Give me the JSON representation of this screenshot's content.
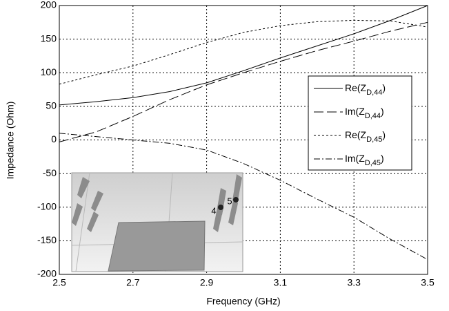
{
  "chart_data": {
    "type": "line",
    "x_label": "Frequency (GHz)",
    "y_label": "Impedance (Ohm)",
    "x": [
      2.5,
      2.6,
      2.7,
      2.8,
      2.9,
      3.0,
      3.1,
      3.2,
      3.3,
      3.4,
      3.5
    ],
    "series": [
      {
        "name": "Re(ZD,44)",
        "color": "#000000",
        "dash": "none",
        "values": [
          52,
          57,
          63,
          72,
          85,
          103,
          122,
          140,
          158,
          178,
          200
        ]
      },
      {
        "name": "Im(ZD,44)",
        "color": "#000000",
        "dash": "14 5",
        "values": [
          -3,
          12,
          35,
          60,
          82,
          100,
          117,
          133,
          147,
          162,
          175
        ]
      },
      {
        "name": "Re(ZD,45)",
        "color": "#000000",
        "dash": "3 3",
        "values": [
          83,
          97,
          110,
          127,
          145,
          160,
          170,
          176,
          178,
          177,
          168
        ]
      },
      {
        "name": "Im(ZD,45)",
        "color": "#000000",
        "dash": "9 3 2 3",
        "values": [
          10,
          5,
          0,
          -5,
          -15,
          -35,
          -60,
          -88,
          -115,
          -148,
          -178
        ]
      }
    ],
    "xlim": [
      2.5,
      3.5
    ],
    "xticks": [
      2.5,
      2.7,
      2.9,
      3.1,
      3.3,
      3.5
    ],
    "ylim": [
      -200,
      200
    ],
    "yticks": [
      -200,
      -150,
      -100,
      -50,
      0,
      50,
      100,
      150,
      200
    ],
    "grid": true,
    "legend": "right",
    "inset_labels": [
      "4",
      "5"
    ]
  }
}
